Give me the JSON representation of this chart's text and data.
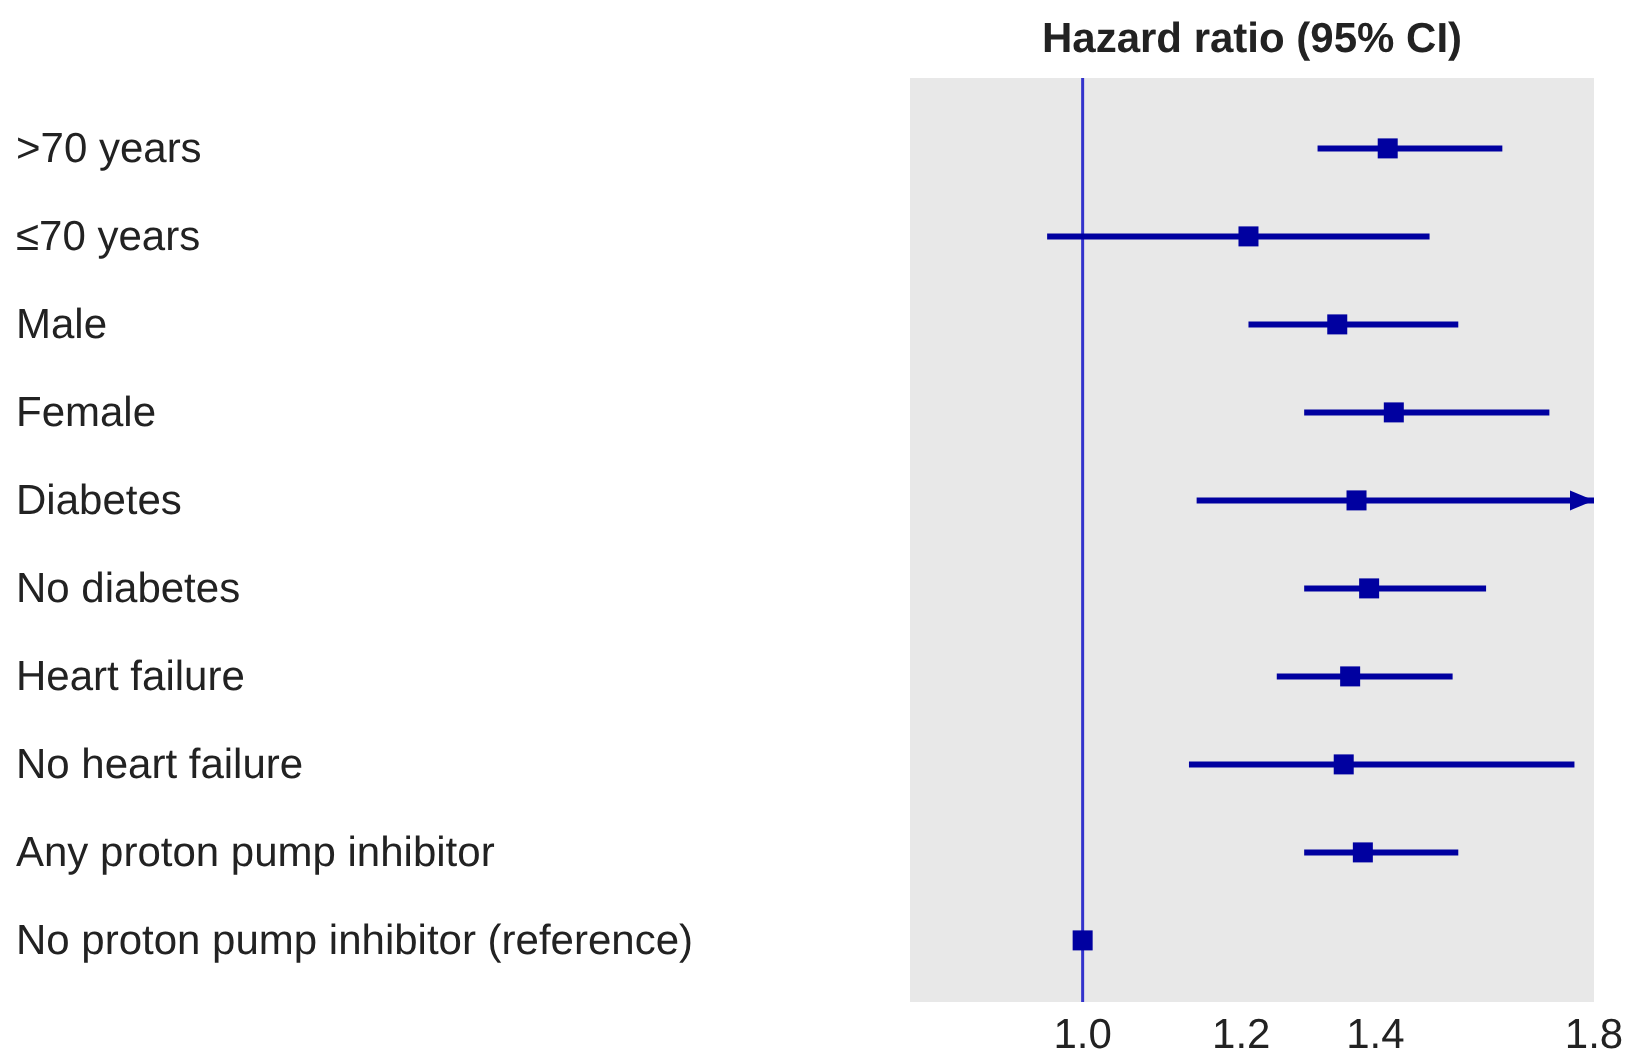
{
  "chart_data": {
    "type": "scatter",
    "orientation": "horizontal",
    "title": "Hazard ratio (95% CI)",
    "categories": [
      ">70 years",
      "≤70 years",
      "Male",
      "Female",
      "Diabetes",
      "No diabetes",
      "Heart failure",
      "No heart failure",
      "Any proton pump inhibitor",
      "No proton pump inhibitor (reference)"
    ],
    "values": [
      1.42,
      1.21,
      1.34,
      1.43,
      1.37,
      1.39,
      1.36,
      1.35,
      1.38,
      1.0
    ],
    "errors": [
      [
        1.31,
        1.62
      ],
      [
        0.96,
        1.49
      ],
      [
        1.21,
        1.54
      ],
      [
        1.29,
        1.71
      ],
      [
        1.14,
        1.8
      ],
      [
        1.29,
        1.59
      ],
      [
        1.25,
        1.53
      ],
      [
        1.13,
        1.76
      ],
      [
        1.29,
        1.54
      ],
      null
    ],
    "color": "#0000a0",
    "marker": "square",
    "log": "x",
    "xlim": [
      0.82,
      1.8
    ],
    "xticks": [
      {
        "value": 1.0,
        "label": "1.0"
      },
      {
        "value": 1.2,
        "label": "1.2"
      },
      {
        "value": 1.4,
        "label": "1.4"
      },
      {
        "value": 1.8,
        "label": "1.8"
      }
    ],
    "ref_lines": [
      {
        "axis": "x",
        "value": 1.0,
        "color": "#3333cc"
      }
    ],
    "grid": false
  }
}
